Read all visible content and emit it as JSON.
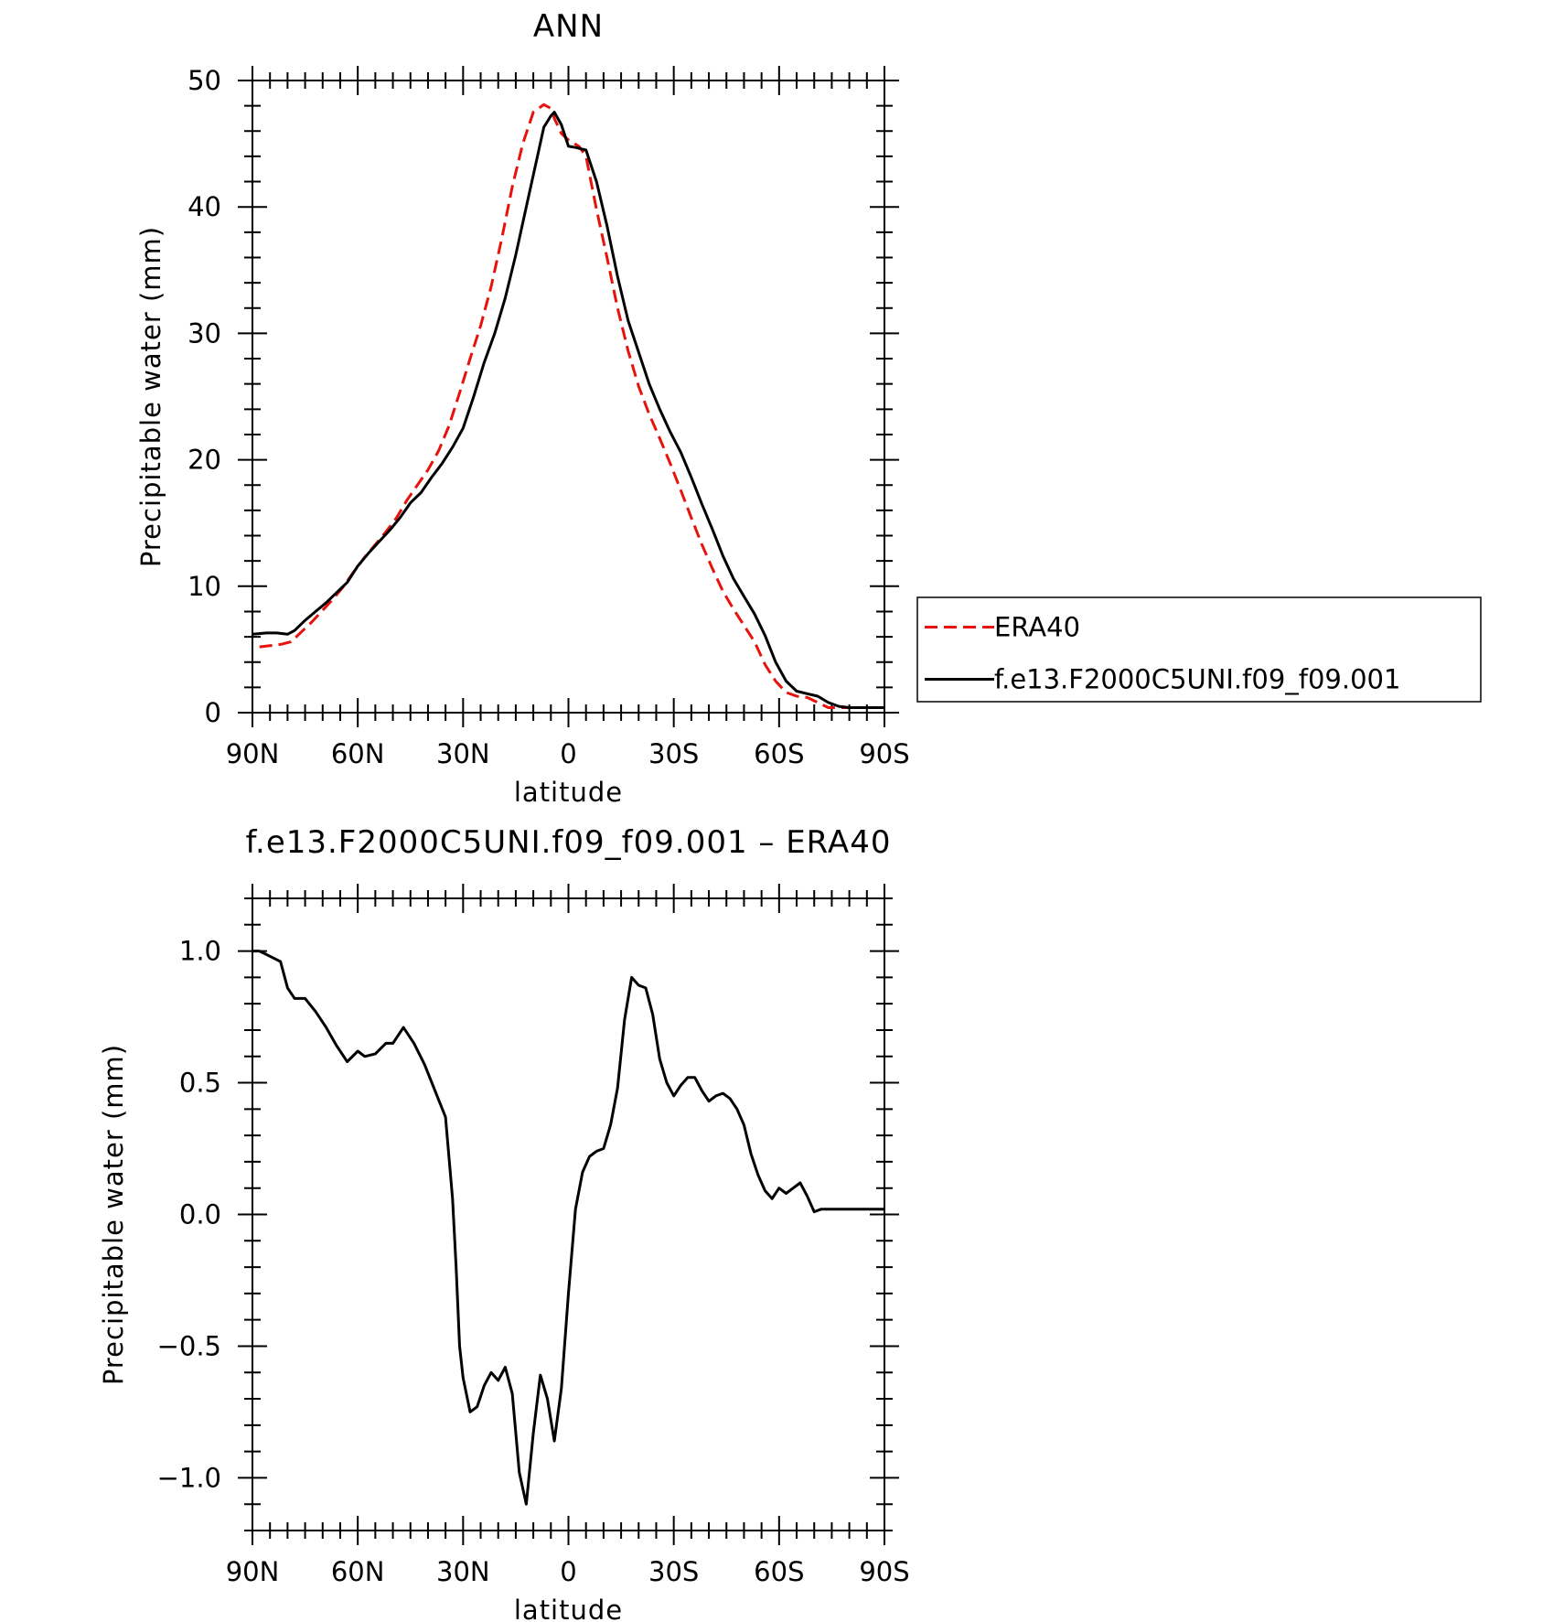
{
  "chart_data": [
    {
      "type": "line",
      "title": "ANN",
      "xlabel": "latitude",
      "ylabel": "Precipitable water (mm)",
      "xlim": [
        90,
        -90
      ],
      "ylim": [
        0,
        50
      ],
      "x_ticks": [
        90,
        60,
        30,
        0,
        -30,
        -60,
        -90
      ],
      "x_tick_labels": [
        "90N",
        "60N",
        "30N",
        "0",
        "30S",
        "60S",
        "90S"
      ],
      "y_ticks": [
        0,
        10,
        20,
        30,
        40,
        50
      ],
      "y_tick_labels": [
        "0",
        "10",
        "20",
        "30",
        "40",
        "50"
      ],
      "legend_position": "right",
      "series": [
        {
          "name": "ERA40",
          "color": "#e8120c",
          "dash": "dashed",
          "x": [
            88,
            85,
            82,
            79,
            76,
            73,
            70,
            67,
            64,
            61,
            58,
            55,
            52,
            49,
            46,
            43,
            40,
            37,
            34,
            31,
            28,
            25,
            22,
            19,
            16,
            13,
            10,
            7,
            5,
            4,
            2,
            0,
            -3,
            -5,
            -6,
            -8,
            -11,
            -14,
            -17,
            -20,
            -23,
            -26,
            -29,
            -32,
            -35,
            -38,
            -41,
            -44,
            -47,
            -50,
            -53,
            -56,
            -59,
            -62,
            -65,
            -68,
            -71,
            -74,
            -77,
            -80,
            -83,
            -86,
            -89
          ],
          "y": [
            5.2,
            5.3,
            5.4,
            5.6,
            6.4,
            7.2,
            8.1,
            9.0,
            10.0,
            11.2,
            12.3,
            13.3,
            14.3,
            15.4,
            16.8,
            18.0,
            19.2,
            20.7,
            22.7,
            25.3,
            28.0,
            30.6,
            33.7,
            37.5,
            41.6,
            45.0,
            47.5,
            48.1,
            47.8,
            47.0,
            45.8,
            45.3,
            44.8,
            44.0,
            42.6,
            39.8,
            36.0,
            32.0,
            28.6,
            25.8,
            23.6,
            21.7,
            19.7,
            17.6,
            15.4,
            13.3,
            11.4,
            9.6,
            8.2,
            6.9,
            5.6,
            3.8,
            2.5,
            1.6,
            1.3,
            1.2,
            0.8,
            0.4,
            0.4,
            0.4,
            0.4,
            0.4,
            0.4
          ]
        },
        {
          "name": "f.e13.F2000C5UNI.f09_f09.001",
          "color": "#000000",
          "dash": "solid",
          "x": [
            90,
            86,
            83,
            80,
            78,
            75,
            72,
            69,
            66,
            63,
            60,
            57,
            54,
            51,
            48,
            45,
            42,
            39,
            36,
            33,
            30,
            27,
            24,
            21,
            18,
            15,
            12,
            9,
            7,
            5,
            4,
            2,
            0,
            -2,
            -5,
            -8,
            -11,
            -14,
            -17,
            -20,
            -23,
            -26,
            -29,
            -32,
            -35,
            -38,
            -41,
            -44,
            -47,
            -50,
            -53,
            -56,
            -59,
            -62,
            -65,
            -68,
            -71,
            -74,
            -77,
            -80,
            -83,
            -86,
            -89,
            -90
          ],
          "y": [
            6.2,
            6.3,
            6.3,
            6.2,
            6.5,
            7.3,
            8.0,
            8.7,
            9.5,
            10.3,
            11.6,
            12.6,
            13.5,
            14.4,
            15.4,
            16.6,
            17.4,
            18.6,
            19.7,
            21.0,
            22.5,
            25.0,
            27.7,
            30.0,
            32.8,
            36.2,
            40.0,
            43.8,
            46.3,
            47.2,
            47.5,
            46.5,
            44.8,
            44.7,
            44.5,
            42.0,
            38.5,
            34.5,
            31.0,
            28.5,
            26.0,
            24.0,
            22.2,
            20.6,
            18.6,
            16.5,
            14.5,
            12.4,
            10.6,
            9.2,
            7.8,
            6.1,
            4.0,
            2.5,
            1.7,
            1.5,
            1.3,
            0.8,
            0.5,
            0.4,
            0.4,
            0.4,
            0.4,
            0.4
          ]
        }
      ]
    },
    {
      "type": "line",
      "title": "f.e13.F2000C5UNI.f09_f09.001 – ERA40",
      "xlabel": "latitude",
      "ylabel": "Precipitable water (mm)",
      "xlim": [
        90,
        -90
      ],
      "ylim": [
        -1.2,
        1.2
      ],
      "x_ticks": [
        90,
        60,
        30,
        0,
        -30,
        -60,
        -90
      ],
      "x_tick_labels": [
        "90N",
        "60N",
        "30N",
        "0",
        "30S",
        "60S",
        "90S"
      ],
      "y_ticks": [
        1.0,
        0.5,
        0.0,
        -0.5,
        -1.0
      ],
      "y_tick_labels": [
        "1.0",
        "0.5",
        "0.0",
        "−0.5",
        "−1.0"
      ],
      "series": [
        {
          "color": "#000000",
          "dash": "solid",
          "x": [
            90,
            88,
            85,
            82,
            80,
            78,
            75,
            72,
            69,
            66,
            63,
            60,
            58,
            55,
            52,
            50,
            47,
            44,
            41,
            38,
            35,
            33,
            32,
            31,
            30,
            28,
            26,
            24,
            22,
            20,
            18,
            16,
            14,
            12,
            10,
            8,
            6,
            4,
            2,
            0,
            -2,
            -4,
            -6,
            -8,
            -10,
            -12,
            -14,
            -16,
            -18,
            -20,
            -22,
            -24,
            -26,
            -28,
            -30,
            -32,
            -34,
            -36,
            -38,
            -40,
            -42,
            -44,
            -46,
            -48,
            -50,
            -52,
            -54,
            -56,
            -58,
            -60,
            -62,
            -64,
            -66,
            -68,
            -70,
            -72,
            -74,
            -76,
            -78,
            -80,
            -82,
            -84,
            -86,
            -88,
            -90
          ],
          "y": [
            1.0,
            1.0,
            0.98,
            0.96,
            0.86,
            0.82,
            0.82,
            0.77,
            0.71,
            0.64,
            0.58,
            0.62,
            0.6,
            0.61,
            0.65,
            0.65,
            0.71,
            0.65,
            0.57,
            0.47,
            0.37,
            0.06,
            -0.2,
            -0.5,
            -0.62,
            -0.75,
            -0.73,
            -0.65,
            -0.6,
            -0.63,
            -0.58,
            -0.68,
            -0.98,
            -1.1,
            -0.83,
            -0.61,
            -0.7,
            -0.86,
            -0.66,
            -0.3,
            0.02,
            0.16,
            0.22,
            0.24,
            0.25,
            0.34,
            0.48,
            0.74,
            0.9,
            0.87,
            0.86,
            0.76,
            0.59,
            0.5,
            0.45,
            0.49,
            0.52,
            0.52,
            0.47,
            0.43,
            0.45,
            0.46,
            0.44,
            0.4,
            0.34,
            0.23,
            0.15,
            0.09,
            0.06,
            0.1,
            0.08,
            0.1,
            0.12,
            0.07,
            0.01,
            0.02,
            0.02,
            0.02,
            0.02,
            0.02,
            0.02,
            0.02,
            0.02,
            0.02,
            0.02
          ]
        }
      ]
    }
  ]
}
